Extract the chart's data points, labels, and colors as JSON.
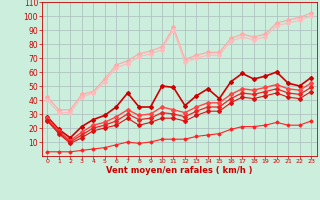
{
  "xlabel": "Vent moyen/en rafales ( km/h )",
  "ylabel": "",
  "background_color": "#cceedd",
  "grid_color": "#aabbbb",
  "xlim": [
    -0.5,
    23.5
  ],
  "ylim": [
    0,
    110
  ],
  "yticks": [
    10,
    20,
    30,
    40,
    50,
    60,
    70,
    80,
    90,
    100,
    110
  ],
  "xticks": [
    0,
    1,
    2,
    3,
    4,
    5,
    6,
    7,
    8,
    9,
    10,
    11,
    12,
    13,
    14,
    15,
    16,
    17,
    18,
    19,
    20,
    21,
    22,
    23
  ],
  "series": [
    {
      "x": [
        0,
        1,
        2,
        3,
        4,
        5,
        6,
        7,
        8,
        9,
        10,
        11,
        12,
        13,
        14,
        15,
        16,
        17,
        18,
        19,
        20,
        21,
        22,
        23
      ],
      "y": [
        42,
        33,
        33,
        44,
        46,
        55,
        65,
        68,
        73,
        75,
        78,
        92,
        69,
        72,
        74,
        74,
        84,
        87,
        85,
        87,
        95,
        97,
        99,
        102
      ],
      "color": "#ffaaaa",
      "marker": "D",
      "markersize": 2,
      "linewidth": 0.9
    },
    {
      "x": [
        0,
        1,
        2,
        3,
        4,
        5,
        6,
        7,
        8,
        9,
        10,
        11,
        12,
        13,
        14,
        15,
        16,
        17,
        18,
        19,
        20,
        21,
        22,
        23
      ],
      "y": [
        40,
        31,
        31,
        42,
        45,
        53,
        63,
        66,
        71,
        73,
        76,
        90,
        67,
        70,
        72,
        72,
        82,
        85,
        83,
        85,
        93,
        95,
        97,
        100
      ],
      "color": "#ffbbbb",
      "marker": "D",
      "markersize": 2,
      "linewidth": 0.9
    },
    {
      "x": [
        0,
        1,
        2,
        3,
        4,
        5,
        6,
        7,
        8,
        9,
        10,
        11,
        12,
        13,
        14,
        15,
        16,
        17,
        18,
        19,
        20,
        21,
        22,
        23
      ],
      "y": [
        28,
        19,
        13,
        21,
        26,
        29,
        35,
        45,
        35,
        35,
        50,
        49,
        36,
        43,
        48,
        41,
        53,
        59,
        55,
        57,
        60,
        52,
        50,
        56
      ],
      "color": "#cc0000",
      "marker": "D",
      "markersize": 2,
      "linewidth": 1.2
    },
    {
      "x": [
        0,
        1,
        2,
        3,
        4,
        5,
        6,
        7,
        8,
        9,
        10,
        11,
        12,
        13,
        14,
        15,
        16,
        17,
        18,
        19,
        20,
        21,
        22,
        23
      ],
      "y": [
        27,
        18,
        11,
        17,
        22,
        24,
        28,
        33,
        29,
        30,
        35,
        33,
        31,
        35,
        38,
        38,
        44,
        48,
        47,
        49,
        51,
        48,
        47,
        52
      ],
      "color": "#ff4444",
      "marker": "D",
      "markersize": 2,
      "linewidth": 1.0
    },
    {
      "x": [
        0,
        1,
        2,
        3,
        4,
        5,
        6,
        7,
        8,
        9,
        10,
        11,
        12,
        13,
        14,
        15,
        16,
        17,
        18,
        19,
        20,
        21,
        22,
        23
      ],
      "y": [
        26,
        17,
        10,
        15,
        20,
        22,
        25,
        30,
        26,
        27,
        31,
        30,
        28,
        32,
        35,
        35,
        41,
        45,
        44,
        46,
        48,
        45,
        44,
        49
      ],
      "color": "#ee2222",
      "marker": "D",
      "markersize": 2,
      "linewidth": 0.9
    },
    {
      "x": [
        0,
        1,
        2,
        3,
        4,
        5,
        6,
        7,
        8,
        9,
        10,
        11,
        12,
        13,
        14,
        15,
        16,
        17,
        18,
        19,
        20,
        21,
        22,
        23
      ],
      "y": [
        25,
        16,
        9,
        13,
        18,
        20,
        22,
        27,
        22,
        24,
        27,
        27,
        25,
        29,
        32,
        32,
        38,
        42,
        41,
        43,
        45,
        42,
        41,
        46
      ],
      "color": "#dd1111",
      "marker": "D",
      "markersize": 2,
      "linewidth": 0.8
    },
    {
      "x": [
        0,
        1,
        2,
        3,
        4,
        5,
        6,
        7,
        8,
        9,
        10,
        11,
        12,
        13,
        14,
        15,
        16,
        17,
        18,
        19,
        20,
        21,
        22,
        23
      ],
      "y": [
        3,
        3,
        3,
        4,
        5,
        6,
        8,
        10,
        9,
        10,
        12,
        12,
        12,
        14,
        15,
        16,
        19,
        21,
        21,
        22,
        24,
        22,
        22,
        25
      ],
      "color": "#ff2222",
      "marker": "D",
      "markersize": 1.5,
      "linewidth": 0.8
    }
  ]
}
